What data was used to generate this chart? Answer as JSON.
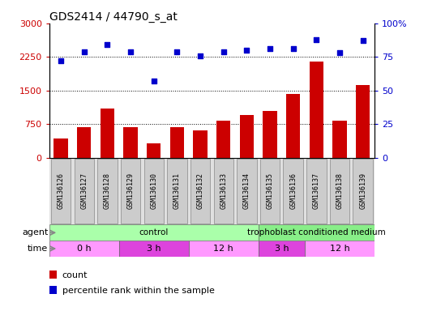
{
  "title": "GDS2414 / 44790_s_at",
  "samples": [
    "GSM136126",
    "GSM136127",
    "GSM136128",
    "GSM136129",
    "GSM136130",
    "GSM136131",
    "GSM136132",
    "GSM136133",
    "GSM136134",
    "GSM136135",
    "GSM136136",
    "GSM136137",
    "GSM136138",
    "GSM136139"
  ],
  "counts": [
    430,
    680,
    1100,
    680,
    310,
    680,
    610,
    820,
    950,
    1050,
    1430,
    2150,
    820,
    1620
  ],
  "percentile": [
    72,
    79,
    84,
    79,
    57,
    79,
    76,
    79,
    80,
    81,
    81,
    88,
    78,
    87
  ],
  "ylim_left": [
    0,
    3000
  ],
  "ylim_right": [
    0,
    100
  ],
  "yticks_left": [
    0,
    750,
    1500,
    2250,
    3000
  ],
  "yticks_right": [
    0,
    25,
    50,
    75,
    100
  ],
  "bar_color": "#cc0000",
  "dot_color": "#0000cc",
  "time_groups": [
    {
      "label": "0 h",
      "start": 0,
      "end": 3,
      "color": "#ff99ff"
    },
    {
      "label": "3 h",
      "start": 3,
      "end": 6,
      "color": "#dd44dd"
    },
    {
      "label": "12 h",
      "start": 6,
      "end": 9,
      "color": "#ff99ff"
    },
    {
      "label": "3 h",
      "start": 9,
      "end": 11,
      "color": "#dd44dd"
    },
    {
      "label": "12 h",
      "start": 11,
      "end": 14,
      "color": "#ff99ff"
    }
  ],
  "agent_groups": [
    {
      "label": "control",
      "start": 0,
      "end": 9,
      "color": "#aaffaa"
    },
    {
      "label": "trophoblast conditioned medium",
      "start": 9,
      "end": 14,
      "color": "#88ee88"
    }
  ],
  "bg_color": "#ffffff",
  "tick_label_bg": "#cccccc"
}
